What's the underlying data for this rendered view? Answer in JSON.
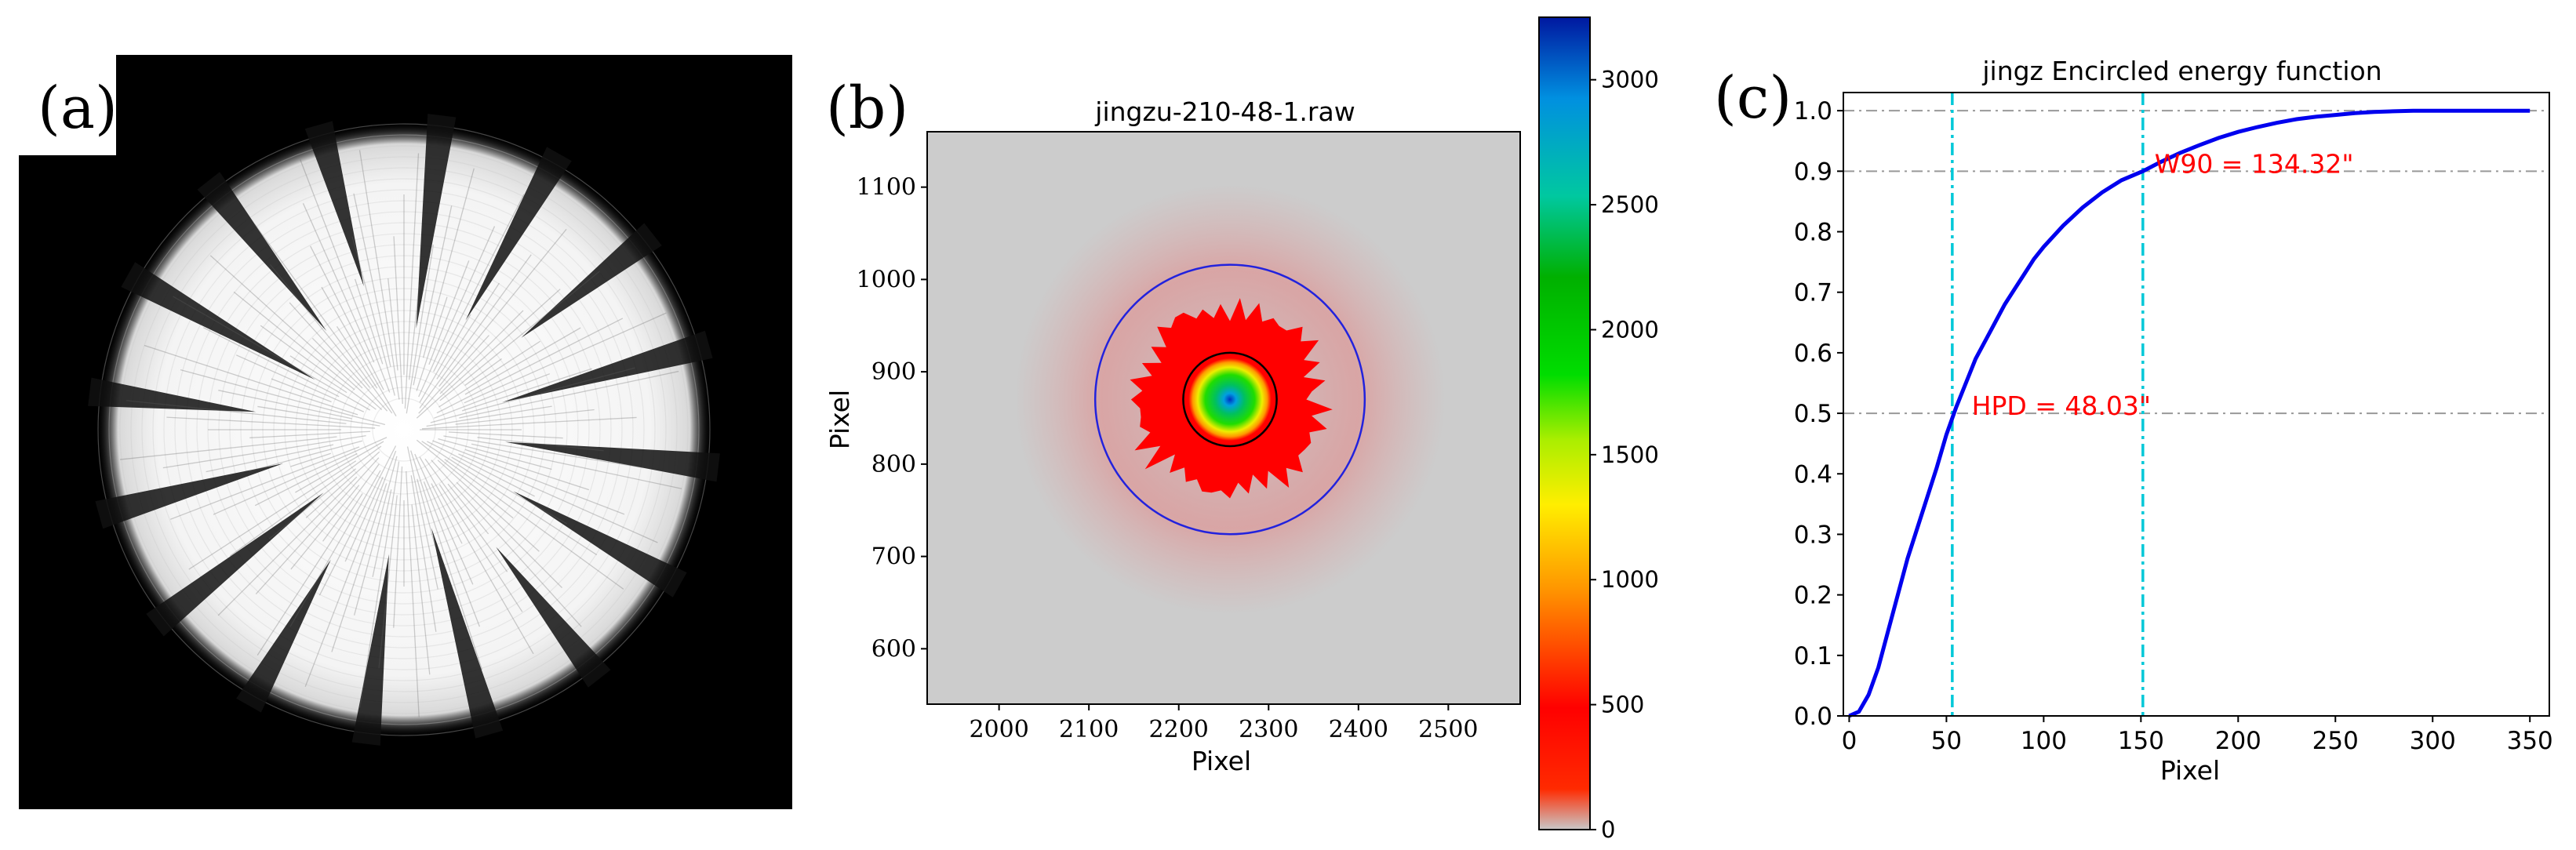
{
  "panels": {
    "a": {
      "label": "(a)"
    },
    "b": {
      "label": "(b)"
    },
    "c": {
      "label": "(c)"
    }
  },
  "colors": {
    "background": "#ffffff",
    "heatmap_background": "#cccccc",
    "outer_circle": "#2222dd",
    "inner_circle": "#000000",
    "annotation": "#ff0000",
    "curve": "#0000ee",
    "marker_line": "#00c8d8",
    "gridline": "#999999"
  },
  "chart_data": [
    {
      "type": "other",
      "note_kind": "image",
      "panel": "a",
      "subject": "white sunburst-like X-ray focal image on black background"
    },
    {
      "type": "heatmap",
      "panel": "b",
      "title": "jingzu-210-48-1.raw",
      "xlabel": "Pixel",
      "ylabel": "Pixel",
      "xlim": [
        1920,
        2580
      ],
      "ylim": [
        540,
        1160
      ],
      "xticks": [
        2000,
        2100,
        2200,
        2300,
        2400,
        2500
      ],
      "yticks": [
        600,
        700,
        800,
        900,
        1000,
        1100
      ],
      "center": [
        2257,
        870
      ],
      "circles": [
        {
          "radius": 150,
          "color": "blue"
        },
        {
          "radius": 52,
          "color": "black"
        }
      ],
      "colorbar": {
        "min": 0,
        "max": 3250,
        "ticks": [
          0,
          500,
          1000,
          1500,
          2000,
          2500,
          3000
        ],
        "stops": [
          [
            0,
            "#c8c8c8"
          ],
          [
            0.05,
            "#ff2a00"
          ],
          [
            0.15,
            "#ff0000"
          ],
          [
            0.3,
            "#ff9900"
          ],
          [
            0.4,
            "#ffee00"
          ],
          [
            0.48,
            "#aaee00"
          ],
          [
            0.56,
            "#00dd00"
          ],
          [
            0.68,
            "#00b000"
          ],
          [
            0.78,
            "#00c8a0"
          ],
          [
            0.9,
            "#0090e0"
          ],
          [
            1.0,
            "#0018a0"
          ]
        ]
      }
    },
    {
      "type": "line",
      "panel": "c",
      "title": "jingz Encircled energy function",
      "xlabel": "Pixel",
      "ylabel": "",
      "xlim": [
        -3,
        360
      ],
      "ylim": [
        0,
        1.03
      ],
      "xticks": [
        0,
        50,
        100,
        150,
        200,
        250,
        300,
        350
      ],
      "yticks": [
        0.0,
        0.1,
        0.2,
        0.3,
        0.4,
        0.5,
        0.6,
        0.7,
        0.8,
        0.9,
        1.0
      ],
      "series": [
        {
          "x": [
            0,
            5,
            10,
            15,
            20,
            25,
            30,
            35,
            40,
            45,
            50,
            55,
            60,
            65,
            70,
            75,
            80,
            85,
            90,
            95,
            100,
            110,
            120,
            130,
            140,
            151,
            160,
            170,
            180,
            190,
            200,
            210,
            220,
            230,
            240,
            250,
            260,
            270,
            280,
            290,
            300,
            320,
            340,
            350
          ],
          "y": [
            0.0,
            0.007,
            0.035,
            0.08,
            0.14,
            0.2,
            0.26,
            0.31,
            0.36,
            0.41,
            0.465,
            0.51,
            0.55,
            0.59,
            0.62,
            0.65,
            0.68,
            0.705,
            0.73,
            0.755,
            0.775,
            0.81,
            0.84,
            0.865,
            0.885,
            0.9,
            0.915,
            0.93,
            0.943,
            0.955,
            0.965,
            0.973,
            0.98,
            0.986,
            0.99,
            0.993,
            0.996,
            0.998,
            0.999,
            1.0,
            1.0,
            1.0,
            1.0,
            1.0
          ]
        }
      ],
      "hlines": [
        1.0,
        0.9,
        0.5
      ],
      "vlines": [
        53,
        151
      ],
      "annotations": [
        {
          "text": "W90 = 134.32\"",
          "x": 157,
          "y": 0.9
        },
        {
          "text": "HPD = 48.03\"",
          "x": 63,
          "y": 0.5
        }
      ]
    }
  ]
}
